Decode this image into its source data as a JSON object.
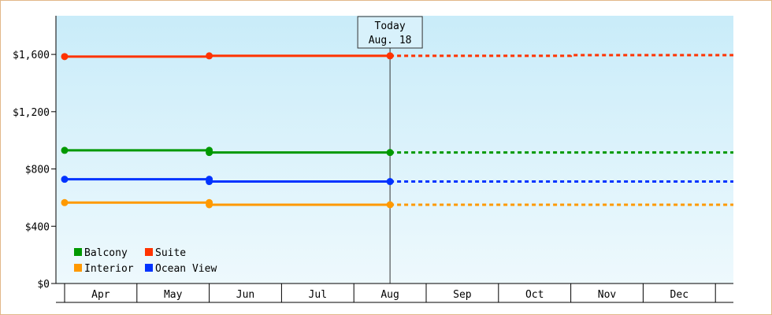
{
  "chart_data": {
    "type": "line",
    "categories": [
      "Apr",
      "May",
      "Jun",
      "Jul",
      "Aug",
      "Sep",
      "Oct",
      "Nov",
      "Dec"
    ],
    "ylim": [
      0,
      1870
    ],
    "yticks": [
      0,
      400,
      800,
      1200,
      1600
    ],
    "ytick_labels": [
      "$0",
      "$400",
      "$800",
      "$1,200",
      "$1,600"
    ],
    "grid": false,
    "legend": "bottom-left",
    "today": {
      "title": "Today",
      "date": "Aug. 18",
      "x": 4.5
    },
    "series": [
      {
        "name": "Suite",
        "color": "#ff3300",
        "actual": [
          [
            0,
            1585
          ],
          [
            2,
            1585
          ],
          [
            2,
            1590
          ],
          [
            4.5,
            1590
          ]
        ],
        "markers": [
          [
            0,
            1585
          ],
          [
            2,
            1590
          ],
          [
            4.5,
            1590
          ]
        ],
        "forecast": [
          [
            4.5,
            1590
          ],
          [
            7.0,
            1590
          ],
          [
            7.0,
            1595
          ],
          [
            9.25,
            1595
          ]
        ]
      },
      {
        "name": "Balcony",
        "color": "#009900",
        "actual": [
          [
            0,
            930
          ],
          [
            2,
            930
          ],
          [
            2,
            915
          ],
          [
            4.5,
            915
          ]
        ],
        "markers": [
          [
            0,
            930
          ],
          [
            2,
            930
          ],
          [
            2,
            915
          ],
          [
            4.5,
            915
          ]
        ],
        "forecast": [
          [
            4.5,
            915
          ],
          [
            9.25,
            915
          ]
        ]
      },
      {
        "name": "Ocean View",
        "color": "#0033ff",
        "actual": [
          [
            0,
            728
          ],
          [
            2,
            728
          ],
          [
            2,
            712
          ],
          [
            4.5,
            712
          ]
        ],
        "markers": [
          [
            0,
            728
          ],
          [
            2,
            728
          ],
          [
            2,
            712
          ],
          [
            4.5,
            712
          ]
        ],
        "forecast": [
          [
            4.5,
            712
          ],
          [
            9.25,
            712
          ]
        ]
      },
      {
        "name": "Interior",
        "color": "#ff9900",
        "actual": [
          [
            0,
            565
          ],
          [
            2,
            565
          ],
          [
            2,
            550
          ],
          [
            4.5,
            550
          ]
        ],
        "markers": [
          [
            0,
            565
          ],
          [
            2,
            565
          ],
          [
            2,
            550
          ],
          [
            4.5,
            550
          ]
        ],
        "forecast": [
          [
            4.5,
            550
          ],
          [
            9.25,
            550
          ]
        ]
      }
    ],
    "legend_order": [
      "Balcony",
      "Suite",
      "Interior",
      "Ocean View"
    ]
  }
}
